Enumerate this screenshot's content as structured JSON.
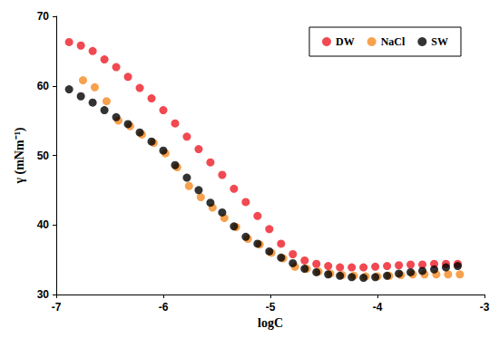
{
  "chart_data": {
    "type": "scatter",
    "x_label": "logC",
    "y_label": "γ (mNm⁻¹)",
    "xlim": [
      -7,
      -3
    ],
    "xticks": [
      -7,
      -6,
      -5,
      -4,
      -3
    ],
    "ylim": [
      30,
      70
    ],
    "yticks": [
      30,
      40,
      50,
      60,
      70
    ],
    "grid": false,
    "legend": "upper right",
    "series": [
      {
        "name": "DW",
        "color": "#ee1c25",
        "marker": "circle",
        "x": [
          -6.88,
          -6.77,
          -6.66,
          -6.55,
          -6.44,
          -6.33,
          -6.22,
          -6.11,
          -6.0,
          -5.89,
          -5.78,
          -5.67,
          -5.56,
          -5.45,
          -5.34,
          -5.23,
          -5.12,
          -5.01,
          -4.9,
          -4.79,
          -4.68,
          -4.57,
          -4.46,
          -4.35,
          -4.24,
          -4.13,
          -4.02,
          -3.91,
          -3.8,
          -3.69,
          -3.58,
          -3.47,
          -3.36,
          -3.25
        ],
        "values": [
          66.3,
          65.8,
          65.0,
          63.8,
          62.7,
          61.3,
          59.7,
          58.2,
          56.5,
          54.6,
          52.7,
          50.9,
          49.0,
          47.2,
          45.2,
          43.3,
          41.3,
          39.4,
          37.3,
          35.8,
          34.9,
          34.4,
          34.1,
          33.9,
          33.9,
          33.9,
          34.0,
          34.1,
          34.2,
          34.3,
          34.3,
          34.4,
          34.4,
          34.4
        ]
      },
      {
        "name": "NaCl",
        "color": "#f58a22",
        "marker": "circle",
        "x": [
          -6.75,
          -6.64,
          -6.53,
          -6.42,
          -6.31,
          -6.2,
          -6.09,
          -5.98,
          -5.87,
          -5.76,
          -5.65,
          -5.54,
          -5.43,
          -5.32,
          -5.21,
          -5.1,
          -4.99,
          -4.88,
          -4.77,
          -4.66,
          -4.55,
          -4.44,
          -4.33,
          -4.22,
          -4.11,
          -4.0,
          -3.89,
          -3.78,
          -3.67,
          -3.56,
          -3.45,
          -3.34,
          -3.23
        ],
        "values": [
          60.8,
          59.8,
          57.8,
          55.0,
          54.2,
          53.0,
          51.8,
          50.3,
          48.3,
          45.6,
          44.0,
          42.5,
          41.0,
          39.7,
          38.0,
          37.2,
          36.0,
          35.2,
          34.0,
          33.7,
          33.3,
          33.0,
          32.8,
          32.7,
          32.6,
          32.6,
          32.7,
          32.8,
          32.9,
          32.9,
          32.9,
          32.9,
          32.9
        ]
      },
      {
        "name": "SW",
        "color": "#000000",
        "marker": "circle",
        "x": [
          -6.88,
          -6.77,
          -6.66,
          -6.55,
          -6.44,
          -6.33,
          -6.22,
          -6.11,
          -6.0,
          -5.89,
          -5.78,
          -5.67,
          -5.56,
          -5.45,
          -5.34,
          -5.23,
          -5.12,
          -5.01,
          -4.9,
          -4.79,
          -4.68,
          -4.57,
          -4.46,
          -4.35,
          -4.24,
          -4.13,
          -4.02,
          -3.91,
          -3.8,
          -3.69,
          -3.58,
          -3.47,
          -3.36,
          -3.25
        ],
        "values": [
          59.5,
          58.5,
          57.6,
          56.5,
          55.5,
          54.5,
          53.3,
          52.0,
          50.7,
          48.6,
          46.8,
          45.0,
          43.2,
          41.8,
          39.8,
          38.3,
          37.3,
          36.2,
          35.3,
          34.5,
          33.7,
          33.2,
          32.9,
          32.7,
          32.5,
          32.4,
          32.5,
          32.7,
          33.0,
          33.2,
          33.4,
          33.6,
          33.9,
          34.1
        ]
      }
    ]
  }
}
